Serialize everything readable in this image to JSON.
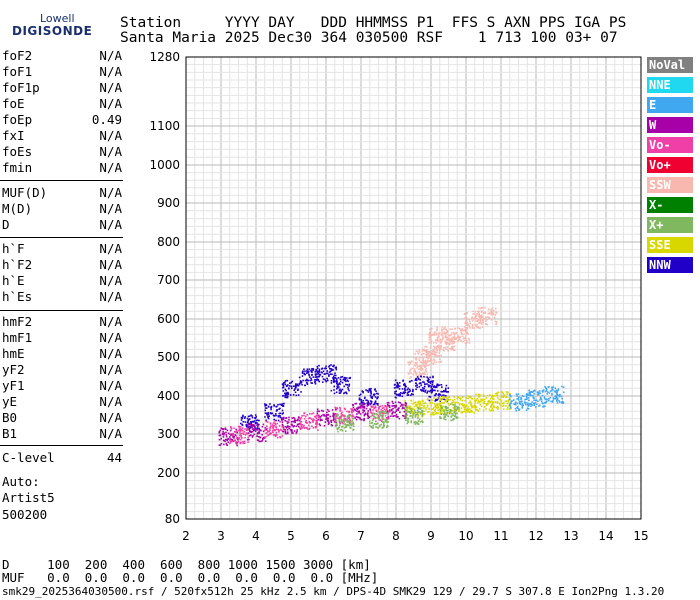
{
  "logo": {
    "line1": "Lowell",
    "line2": "DIGISONDE"
  },
  "header": {
    "row1": "Station     YYYY DAY   DDD HHMMSS P1  FFS S AXN PPS IGA PS",
    "row2": "Santa Maria 2025 Dec30 364 030500 RSF    1 713 100 03+ 07"
  },
  "params": {
    "group1": [
      {
        "name": "foF2",
        "value": "N/A"
      },
      {
        "name": "foF1",
        "value": "N/A"
      },
      {
        "name": "foF1p",
        "value": "N/A"
      },
      {
        "name": "foE",
        "value": "N/A"
      },
      {
        "name": "foEp",
        "value": "0.49"
      },
      {
        "name": "fxI",
        "value": "N/A"
      },
      {
        "name": "foEs",
        "value": "N/A"
      },
      {
        "name": "fmin",
        "value": "N/A"
      }
    ],
    "group2": [
      {
        "name": "MUF(D)",
        "value": "N/A"
      },
      {
        "name": "M(D)",
        "value": "N/A"
      },
      {
        "name": "D",
        "value": "N/A"
      }
    ],
    "group3": [
      {
        "name": "h`F",
        "value": "N/A"
      },
      {
        "name": "h`F2",
        "value": "N/A"
      },
      {
        "name": "h`E",
        "value": "N/A"
      },
      {
        "name": "h`Es",
        "value": "N/A"
      }
    ],
    "group4": [
      {
        "name": "hmF2",
        "value": "N/A"
      },
      {
        "name": "hmF1",
        "value": "N/A"
      },
      {
        "name": "hmE",
        "value": "N/A"
      },
      {
        "name": "yF2",
        "value": "N/A"
      },
      {
        "name": "yF1",
        "value": "N/A"
      },
      {
        "name": "yE",
        "value": "N/A"
      },
      {
        "name": "B0",
        "value": "N/A"
      },
      {
        "name": "B1",
        "value": "N/A"
      }
    ],
    "clevel": {
      "name": "C-level",
      "value": "44"
    }
  },
  "auto": {
    "line1": "Auto:",
    "line2": "Artist5",
    "line3": "500200"
  },
  "legend": [
    {
      "label": "NoVal",
      "color": "#808080"
    },
    {
      "label": "NNE",
      "color": "#20d8f0"
    },
    {
      "label": "E",
      "color": "#40a8f0"
    },
    {
      "label": "W",
      "color": "#a800a8"
    },
    {
      "label": "Vo-",
      "color": "#f040a8"
    },
    {
      "label": "Vo+",
      "color": "#f00030"
    },
    {
      "label": "SSW",
      "color": "#f8b8b0"
    },
    {
      "label": "X-",
      "color": "#008000"
    },
    {
      "label": "X+",
      "color": "#80b860"
    },
    {
      "label": "SSE",
      "color": "#d8d800"
    },
    {
      "label": "NNW",
      "color": "#2000c8"
    }
  ],
  "footer": {
    "d_row": "D     100  200  400  600  800 1000 1500 3000 [km]",
    "muf_row": "MUF   0.0  0.0  0.0  0.0  0.0  0.0  0.0  0.0 [MHz]",
    "bottom": "smk29_2025364030500.rsf / 520fx512h 25 kHz 2.5 km / DPS-4D SMK29 129 / 29.7 S 307.8 E Ion2Png 1.3.20"
  },
  "chart_data": {
    "type": "scatter",
    "xlim": [
      2,
      15
    ],
    "ylim": [
      80,
      1280
    ],
    "x_ticks": [
      2,
      3,
      4,
      5,
      6,
      7,
      8,
      9,
      10,
      11,
      12,
      13,
      14,
      15
    ],
    "y_ticks": [
      80,
      200,
      300,
      400,
      500,
      600,
      700,
      800,
      900,
      1000,
      1100,
      1280
    ],
    "y_scale": "nonlinear",
    "grid": true,
    "series": [
      {
        "color_key": "SSW",
        "points": [
          [
            8.6,
            470
          ],
          [
            9.0,
            510
          ],
          [
            9.4,
            540
          ],
          [
            9.8,
            560
          ],
          [
            10.2,
            600
          ],
          [
            10.6,
            610
          ],
          [
            9.2,
            560
          ],
          [
            8.8,
            500
          ]
        ]
      },
      {
        "color_key": "NNW",
        "points": [
          [
            3.8,
            330
          ],
          [
            4.5,
            360
          ],
          [
            5.0,
            420
          ],
          [
            5.5,
            450
          ],
          [
            6.0,
            460
          ],
          [
            6.4,
            430
          ],
          [
            7.2,
            400
          ],
          [
            8.2,
            420
          ],
          [
            8.8,
            430
          ],
          [
            9.2,
            410
          ]
        ]
      },
      {
        "color_key": "SSE",
        "points": [
          [
            8.5,
            370
          ],
          [
            9.0,
            375
          ],
          [
            9.5,
            378
          ],
          [
            10.0,
            380
          ],
          [
            10.5,
            385
          ],
          [
            11.0,
            390
          ]
        ]
      },
      {
        "color_key": "E",
        "points": [
          [
            11.5,
            385
          ],
          [
            12.0,
            395
          ],
          [
            12.5,
            405
          ]
        ]
      },
      {
        "color_key": "W",
        "points": [
          [
            3.2,
            295
          ],
          [
            4.0,
            305
          ],
          [
            5.0,
            325
          ],
          [
            6.0,
            345
          ],
          [
            7.0,
            360
          ],
          [
            8.0,
            365
          ]
        ]
      },
      {
        "color_key": "Vo-",
        "points": [
          [
            3.5,
            300
          ],
          [
            4.5,
            315
          ],
          [
            5.5,
            335
          ],
          [
            6.5,
            350
          ],
          [
            7.5,
            355
          ]
        ]
      },
      {
        "color_key": "X+",
        "points": [
          [
            6.5,
            330
          ],
          [
            7.5,
            340
          ],
          [
            8.5,
            350
          ],
          [
            9.5,
            360
          ]
        ]
      }
    ]
  }
}
